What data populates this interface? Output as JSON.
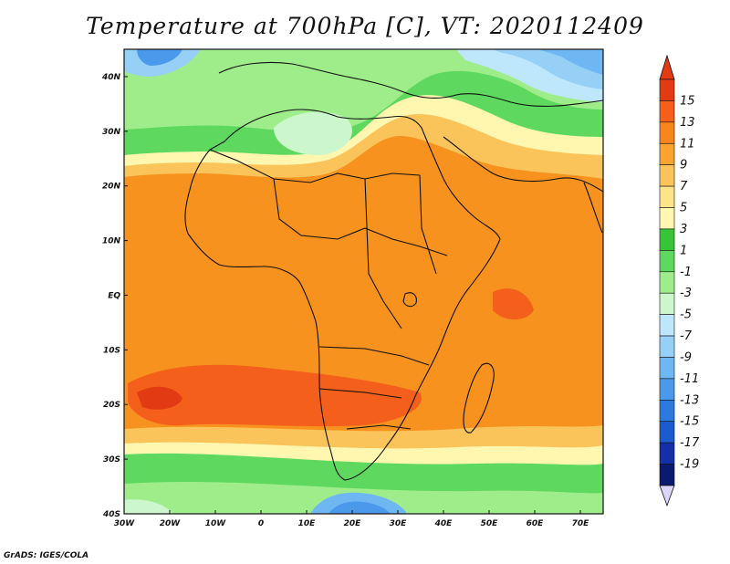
{
  "title": "Temperature at 700hPa [C], VT: 2020112409",
  "credit": "GrADS: IGES/COLA",
  "map": {
    "lon_range": [
      -30,
      75
    ],
    "lat_range": [
      -40,
      45
    ],
    "lon_ticks": [
      "30W",
      "20W",
      "10W",
      "0",
      "10E",
      "20E",
      "30E",
      "40E",
      "50E",
      "60E",
      "70E"
    ],
    "lat_ticks": [
      "40S",
      "30S",
      "20S",
      "10S",
      "EQ",
      "10N",
      "20N",
      "30N",
      "40N"
    ]
  },
  "colorbar": {
    "labels": [
      "15",
      "13",
      "11",
      "9",
      "7",
      "5",
      "3",
      "1",
      "-1",
      "-3",
      "-5",
      "-7",
      "-9",
      "-11",
      "-13",
      "-15",
      "-17",
      "-19"
    ],
    "colors": [
      "#e23a12",
      "#f4601c",
      "#f7861f",
      "#f9a431",
      "#fbc45a",
      "#fde489",
      "#fff6b0",
      "#36c536",
      "#5ed85e",
      "#9eed8a",
      "#ccf7cc",
      "#bfe7fb",
      "#96d0f6",
      "#6fb7f2",
      "#4a99ea",
      "#2c7ade",
      "#1b5bcd",
      "#1530a6",
      "#0b1a6e"
    ],
    "top_arrow_color": "#e23a12",
    "bottom_arrow_color": "#dcd6fb"
  }
}
